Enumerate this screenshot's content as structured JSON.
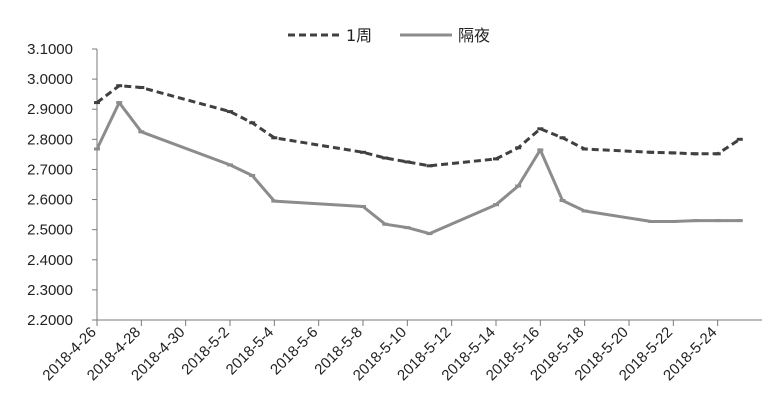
{
  "chart_data": {
    "type": "line",
    "title": "",
    "xlabel": "",
    "ylabel": "",
    "x_tick_labels": [
      "2018-4-26",
      "2018-4-28",
      "2018-4-30",
      "2018-5-2",
      "2018-5-4",
      "2018-5-6",
      "2018-5-8",
      "2018-5-10",
      "2018-5-12",
      "2018-5-14",
      "2018-5-16",
      "2018-5-18",
      "2018-5-20",
      "2018-5-22",
      "2018-5-24"
    ],
    "y_tick_labels": [
      "2.2000",
      "2.3000",
      "2.4000",
      "2.5000",
      "2.6000",
      "2.7000",
      "2.8000",
      "2.9000",
      "3.0000",
      "3.1000"
    ],
    "ylim": [
      2.2,
      3.1
    ],
    "xlim": [
      "2018-4-26",
      "2018-5-26"
    ],
    "grid": false,
    "legend_position": "top",
    "series": [
      {
        "name": "1周",
        "style": "dashed",
        "color": "#404040",
        "points": [
          [
            "2018-4-26",
            2.922
          ],
          [
            "2018-4-27",
            2.978
          ],
          [
            "2018-4-28",
            2.972
          ],
          [
            "2018-5-2",
            2.892
          ],
          [
            "2018-5-3",
            2.855
          ],
          [
            "2018-5-4",
            2.805
          ],
          [
            "2018-5-8",
            2.757
          ],
          [
            "2018-5-9",
            2.738
          ],
          [
            "2018-5-10",
            2.725
          ],
          [
            "2018-5-11",
            2.712
          ],
          [
            "2018-5-14",
            2.735
          ],
          [
            "2018-5-15",
            2.772
          ],
          [
            "2018-5-16",
            2.835
          ],
          [
            "2018-5-17",
            2.805
          ],
          [
            "2018-5-18",
            2.768
          ],
          [
            "2018-5-21",
            2.757
          ],
          [
            "2018-5-22",
            2.755
          ],
          [
            "2018-5-23",
            2.752
          ],
          [
            "2018-5-24",
            2.752
          ],
          [
            "2018-5-25",
            2.8
          ]
        ]
      },
      {
        "name": "隔夜",
        "style": "solid",
        "color": "#8c8c8c",
        "points": [
          [
            "2018-4-26",
            2.768
          ],
          [
            "2018-4-27",
            2.922
          ],
          [
            "2018-4-28",
            2.825
          ],
          [
            "2018-5-2",
            2.715
          ],
          [
            "2018-5-3",
            2.68
          ],
          [
            "2018-5-4",
            2.595
          ],
          [
            "2018-5-8",
            2.577
          ],
          [
            "2018-5-9",
            2.518
          ],
          [
            "2018-5-10",
            2.507
          ],
          [
            "2018-5-11",
            2.487
          ],
          [
            "2018-5-14",
            2.583
          ],
          [
            "2018-5-15",
            2.645
          ],
          [
            "2018-5-16",
            2.765
          ],
          [
            "2018-5-17",
            2.597
          ],
          [
            "2018-5-18",
            2.562
          ],
          [
            "2018-5-21",
            2.527
          ],
          [
            "2018-5-22",
            2.527
          ],
          [
            "2018-5-23",
            2.53
          ],
          [
            "2018-5-24",
            2.53
          ],
          [
            "2018-5-25",
            2.53
          ]
        ]
      }
    ]
  }
}
